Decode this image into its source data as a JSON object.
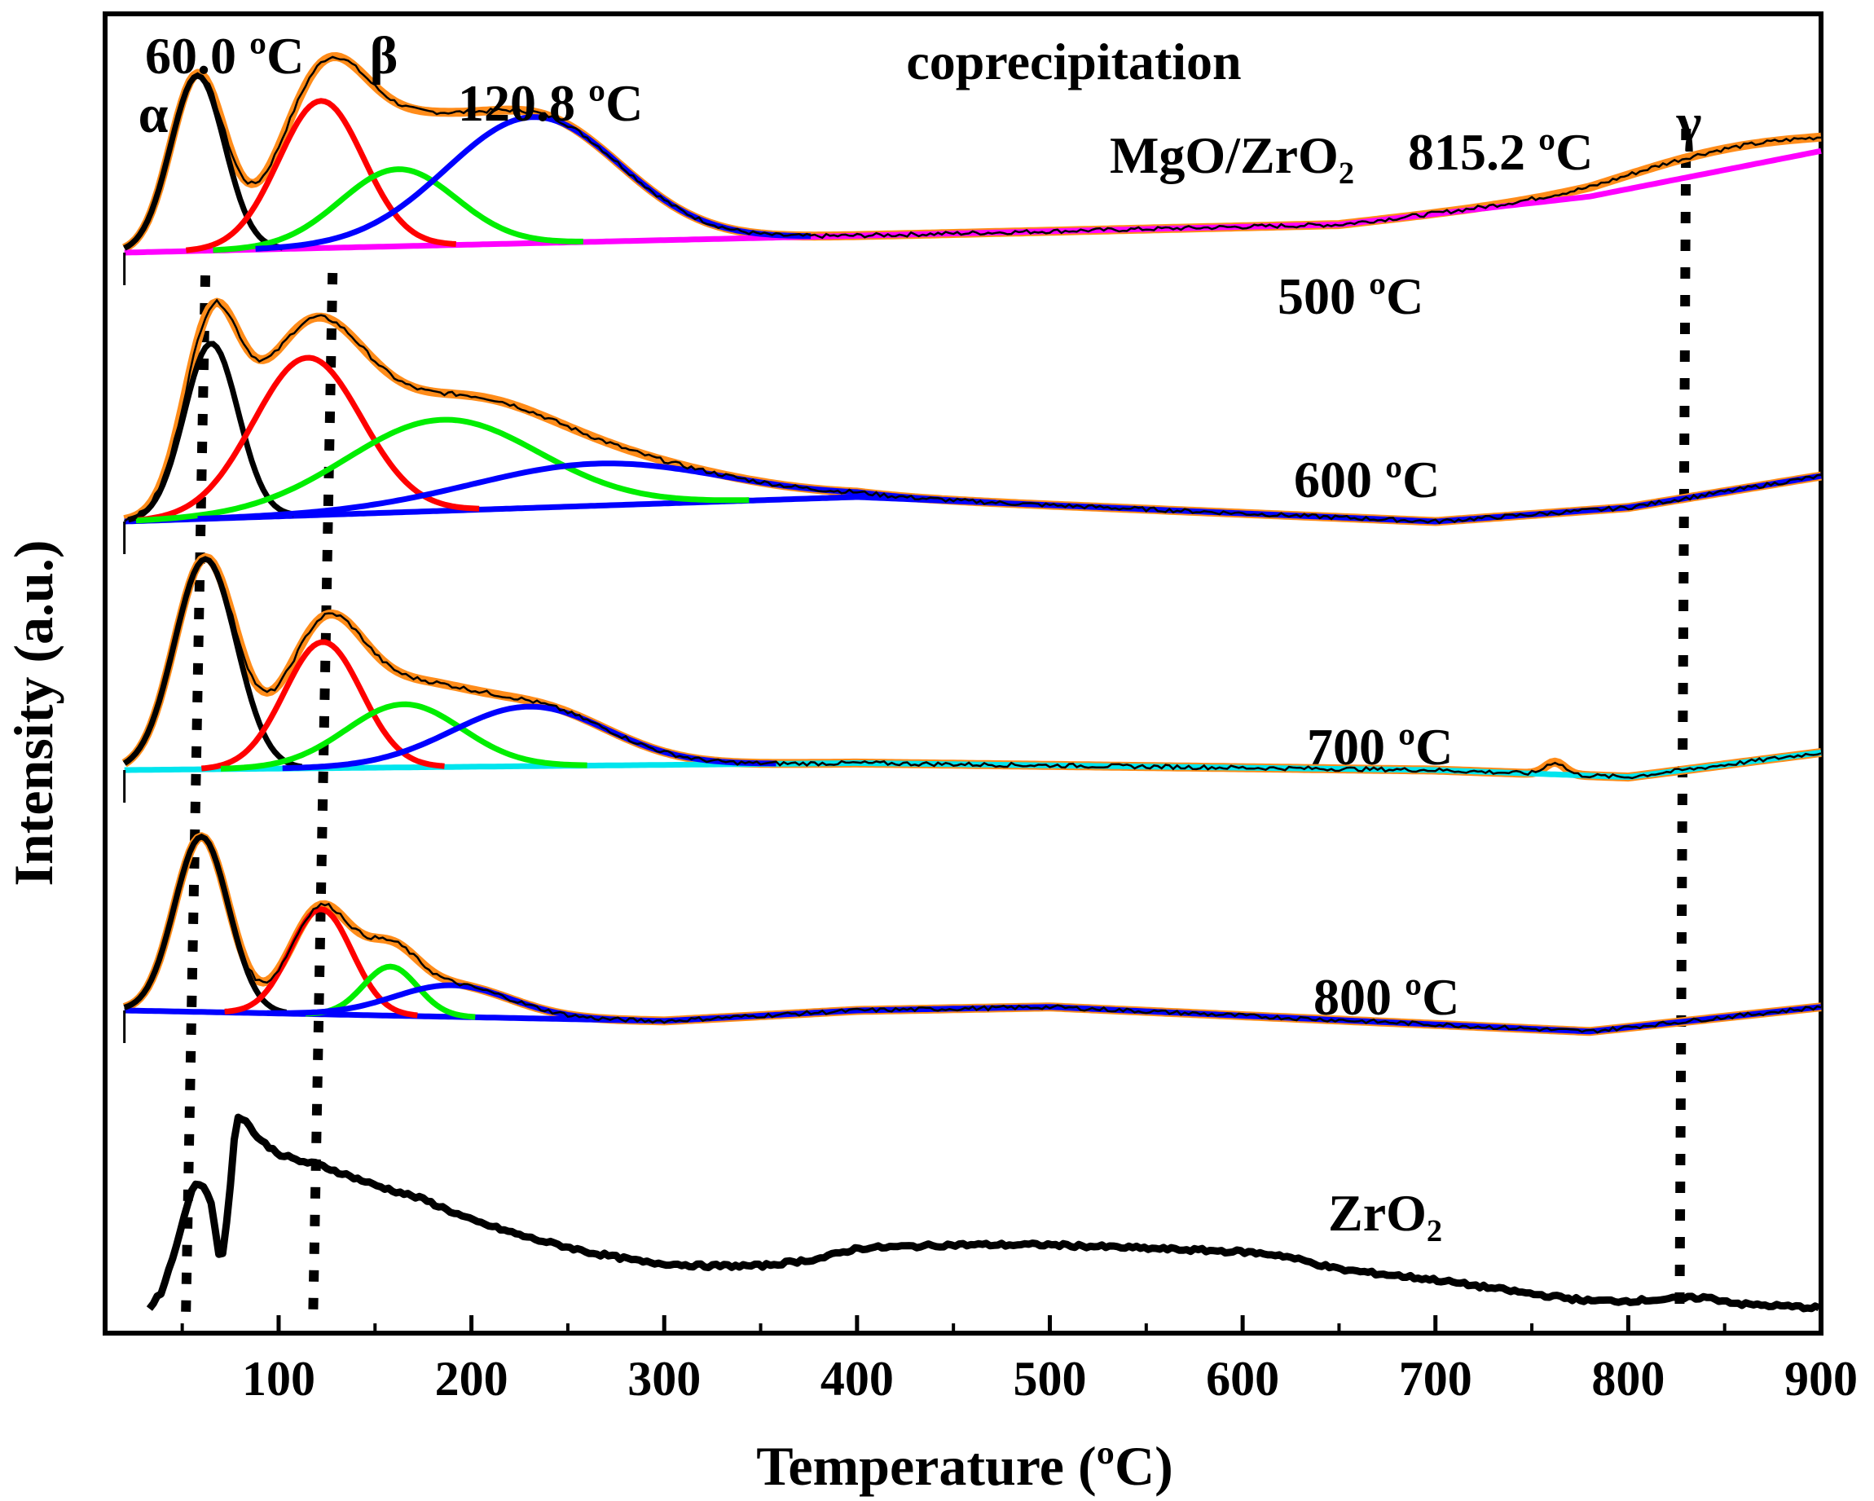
{
  "chart_data": {
    "type": "line",
    "title": "coprecipitation",
    "subtitle": "MgO/ZrO₂",
    "xlabel": "Temperature (ºC)",
    "ylabel": "Intensity (a.u.)",
    "xlim": [
      10,
      900
    ],
    "xticks": [
      100,
      200,
      300,
      400,
      500,
      600,
      700,
      800,
      900
    ],
    "xtick_labels": [
      "100",
      "200",
      "300",
      "400",
      "500",
      "600",
      "700",
      "800",
      "900"
    ],
    "peak_labels": {
      "alpha": "α",
      "beta": "β",
      "gamma": "γ",
      "alpha_temp": "60.0 ºC",
      "beta_temp": "120.8 ºC",
      "gamma_temp": "815.2 ºC"
    },
    "reference_lines_x": [
      62,
      128,
      830
    ],
    "colors": {
      "measured": "#000000",
      "envelope": "#ff8c1a",
      "peak1": "#000000",
      "peak2": "#ff0000",
      "peak3": "#00ee00",
      "peak4": "#0000ff",
      "baseline_500": "#ff00ff",
      "baseline_700": "#00e5ee",
      "baseline_other": "#0000ff"
    },
    "series": [
      {
        "name": "500 ºC",
        "label": "500 ºC",
        "baseline": {
          "x": [
            20,
            650,
            780,
            900
          ],
          "y": [
            0.0,
            0.08,
            0.16,
            0.29
          ]
        },
        "peaks": [
          {
            "center": 58,
            "height": 0.5,
            "width": 14
          },
          {
            "center": 122,
            "height": 0.42,
            "width": 22
          },
          {
            "center": 162,
            "height": 0.22,
            "width": 30
          },
          {
            "center": 232,
            "height": 0.36,
            "width": 45
          }
        ],
        "extra_bumps": [
          {
            "center": 850,
            "height": 0.06,
            "width": 55
          }
        ]
      },
      {
        "name": "600 ºC",
        "label": "600 ºC",
        "baseline": {
          "x": [
            20,
            400,
            700,
            800,
            900
          ],
          "y": [
            0.0,
            0.07,
            0.0,
            0.04,
            0.13
          ]
        },
        "peaks": [
          {
            "center": 65,
            "height": 0.5,
            "width": 14
          },
          {
            "center": 115,
            "height": 0.45,
            "width": 28
          },
          {
            "center": 185,
            "height": 0.26,
            "width": 50
          },
          {
            "center": 265,
            "height": 0.12,
            "width": 65
          }
        ],
        "extra_bumps": []
      },
      {
        "name": "700 ºC",
        "label": "700 ºC",
        "baseline": {
          "x": [
            20,
            400,
            700,
            800,
            900
          ],
          "y": [
            0.0,
            0.02,
            0.0,
            -0.02,
            0.05
          ]
        },
        "peaks": [
          {
            "center": 62,
            "height": 0.6,
            "width": 16
          },
          {
            "center": 123,
            "height": 0.36,
            "width": 20
          },
          {
            "center": 165,
            "height": 0.18,
            "width": 30
          },
          {
            "center": 230,
            "height": 0.17,
            "width": 40
          }
        ],
        "extra_bumps": [
          {
            "center": 762,
            "height": 0.035,
            "width": 5
          }
        ]
      },
      {
        "name": "800 ºC",
        "label": "800 ºC",
        "baseline": {
          "x": [
            20,
            300,
            400,
            500,
            780,
            900
          ],
          "y": [
            0.0,
            -0.03,
            0.0,
            0.01,
            -0.06,
            0.01
          ]
        },
        "peaks": [
          {
            "center": 60,
            "height": 0.5,
            "width": 14
          },
          {
            "center": 122,
            "height": 0.3,
            "width": 16
          },
          {
            "center": 158,
            "height": 0.14,
            "width": 14
          },
          {
            "center": 190,
            "height": 0.09,
            "width": 30
          }
        ],
        "extra_bumps": []
      },
      {
        "name": "ZrO₂",
        "label": "ZrO₂",
        "x": [
          33,
          40,
          48,
          55,
          60,
          65,
          70,
          74,
          78,
          82,
          90,
          100,
          110,
          120,
          130,
          150,
          175,
          200,
          230,
          260,
          290,
          320,
          350,
          380,
          400,
          450,
          500,
          550,
          600,
          620,
          650,
          700,
          750,
          780,
          800,
          840,
          860,
          900
        ],
        "y": [
          0.0,
          0.05,
          0.2,
          0.34,
          0.36,
          0.3,
          0.12,
          0.28,
          0.55,
          0.54,
          0.48,
          0.44,
          0.42,
          0.41,
          0.39,
          0.35,
          0.31,
          0.25,
          0.2,
          0.16,
          0.13,
          0.12,
          0.12,
          0.14,
          0.17,
          0.18,
          0.18,
          0.17,
          0.16,
          0.15,
          0.11,
          0.08,
          0.04,
          0.02,
          0.02,
          0.03,
          0.01,
          0.0
        ]
      }
    ]
  }
}
